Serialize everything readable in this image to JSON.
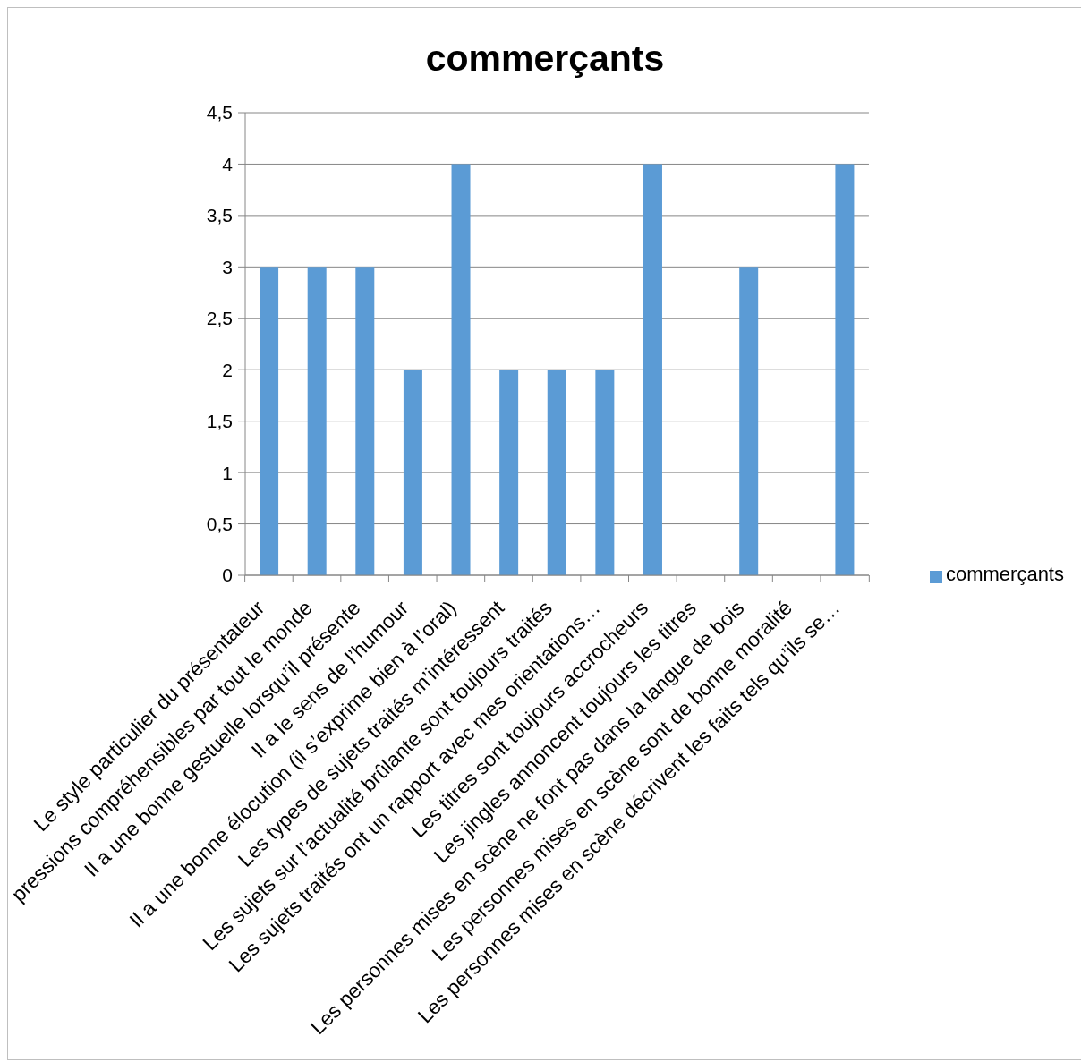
{
  "chart_data": {
    "type": "bar",
    "title": "commerçants",
    "categories": [
      "Le style particulier du présentateur",
      "pressions compréhensibles par tout le monde",
      "Il a une bonne gestuelle lorsqu’il présente",
      "Il a le sens de l’humour",
      "Il a une bonne élocution (il s’exprime bien à l’oral)",
      "Les types de sujets traités m’intéressent",
      "Les sujets sur l’actualité brûlante sont toujours traités",
      "Les sujets traités ont un rapport avec mes orientations…",
      "Les titres sont toujours accrocheurs",
      "Les jingles annoncent toujours les titres",
      "Les personnes mises en scène ne font pas dans la langue de bois",
      "Les personnes mises en scène sont de bonne moralité",
      "Les personnes mises en scène décrivent les faits tels qu’ils se…"
    ],
    "series": [
      {
        "name": "commerçants",
        "color": "#5b9bd5",
        "values": [
          3,
          3,
          3,
          2,
          4,
          2,
          2,
          2,
          4,
          0,
          3,
          0,
          4
        ]
      }
    ],
    "ylim": [
      0,
      4.5
    ],
    "yticks": [
      0,
      {
        "value": 0.5,
        "label": "0,5"
      },
      1,
      {
        "value": 1.5,
        "label": "1,5"
      },
      2,
      {
        "value": 2.5,
        "label": "2,5"
      },
      3,
      {
        "value": 3.5,
        "label": "3,5"
      },
      4,
      {
        "value": 4.5,
        "label": "4,5"
      }
    ],
    "grid": "y",
    "legend": "right"
  }
}
